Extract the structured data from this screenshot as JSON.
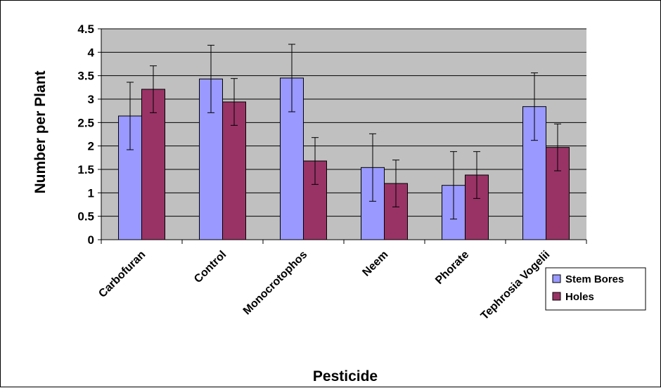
{
  "chart_data": {
    "type": "bar",
    "title": "",
    "xlabel": "Pesticide",
    "ylabel": "Number per Plant",
    "ylim": [
      0,
      4.5
    ],
    "ytick_step": 0.5,
    "yticks": [
      "0",
      "0.5",
      "1",
      "1.5",
      "2",
      "2.5",
      "3",
      "3.5",
      "4",
      "4.5"
    ],
    "grid": "horizontal",
    "plot_background": "#c0c0c0",
    "legend_position": "right",
    "categories": [
      "Carbofuran",
      "Control",
      "Monocrotophos",
      "Neem",
      "Phorate",
      "Tephrosia Vogelii"
    ],
    "series": [
      {
        "name": "Stem Bores",
        "color": "#9999ff",
        "values": [
          2.64,
          3.43,
          3.45,
          1.54,
          1.16,
          2.84
        ],
        "error": [
          0.72,
          0.72,
          0.72,
          0.72,
          0.72,
          0.72
        ]
      },
      {
        "name": "Holes",
        "color": "#993366",
        "values": [
          3.21,
          2.94,
          1.68,
          1.2,
          1.38,
          1.97
        ],
        "error": [
          0.5,
          0.5,
          0.5,
          0.5,
          0.5,
          0.5
        ]
      }
    ]
  }
}
